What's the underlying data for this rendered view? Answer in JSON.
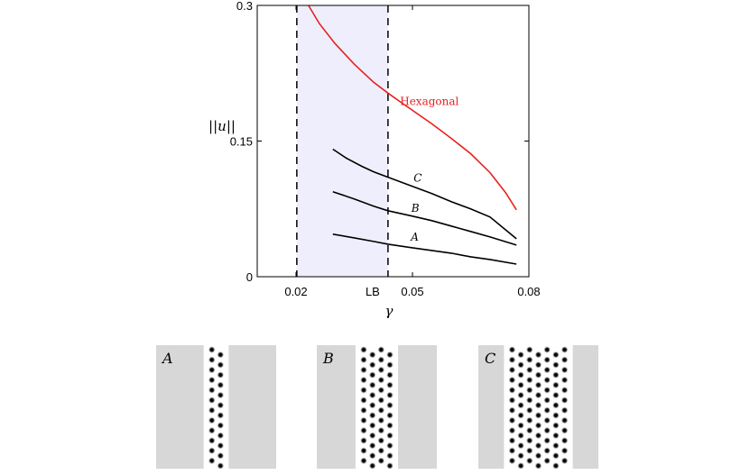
{
  "chart_data": {
    "type": "line",
    "xlabel": "γ",
    "ylabel": "||u||",
    "xlim": [
      0.01,
      0.08
    ],
    "ylim": [
      0,
      0.3
    ],
    "x_ticks": [
      {
        "value": 0.02,
        "label": "0.02"
      },
      {
        "value": 0.05,
        "label": "0.05"
      },
      {
        "value": 0.08,
        "label": "0.08"
      }
    ],
    "lb_tick": {
      "value": 0.0437,
      "label": "LB"
    },
    "y_ticks": [
      {
        "value": 0,
        "label": "0"
      },
      {
        "value": 0.15,
        "label": "0.15"
      },
      {
        "value": 0.3,
        "label": "0.3"
      }
    ],
    "shaded_region": {
      "from": 0.0202,
      "to": 0.0437,
      "color": "#eeeefc"
    },
    "vlines": [
      0.0202,
      0.0437
    ],
    "series": [
      {
        "name": "Hexagonal",
        "color": "#e8201e",
        "x": [
          0.0232,
          0.026,
          0.03,
          0.035,
          0.04,
          0.0437,
          0.047,
          0.05,
          0.055,
          0.06,
          0.065,
          0.07,
          0.074,
          0.0768
        ],
        "y": [
          0.3,
          0.28,
          0.258,
          0.235,
          0.215,
          0.203,
          0.193,
          0.184,
          0.169,
          0.153,
          0.136,
          0.115,
          0.093,
          0.074
        ]
      },
      {
        "name": "C",
        "color": "#000000",
        "x": [
          0.0295,
          0.033,
          0.037,
          0.04,
          0.0437,
          0.05,
          0.055,
          0.06,
          0.065,
          0.07,
          0.0768
        ],
        "y": [
          0.141,
          0.131,
          0.122,
          0.116,
          0.11,
          0.1,
          0.092,
          0.083,
          0.075,
          0.066,
          0.042
        ]
      },
      {
        "name": "B",
        "color": "#000000",
        "x": [
          0.0295,
          0.035,
          0.04,
          0.0437,
          0.05,
          0.055,
          0.06,
          0.065,
          0.07,
          0.0768
        ],
        "y": [
          0.094,
          0.086,
          0.078,
          0.073,
          0.067,
          0.062,
          0.056,
          0.05,
          0.044,
          0.035
        ]
      },
      {
        "name": "A",
        "color": "#000000",
        "x": [
          0.0295,
          0.035,
          0.04,
          0.0437,
          0.05,
          0.055,
          0.06,
          0.065,
          0.07,
          0.0768
        ],
        "y": [
          0.047,
          0.043,
          0.039,
          0.036,
          0.032,
          0.029,
          0.026,
          0.022,
          0.019,
          0.014
        ]
      }
    ],
    "curve_labels": [
      {
        "text": "Hexagonal",
        "x": 0.0468,
        "y": 0.19
      },
      {
        "text": "C",
        "x": 0.0503,
        "y": 0.105
      },
      {
        "text": "B",
        "x": 0.0497,
        "y": 0.072
      },
      {
        "text": "A",
        "x": 0.0496,
        "y": 0.04
      }
    ],
    "grid": false
  },
  "panels": [
    {
      "label": "A",
      "columns": 2
    },
    {
      "label": "B",
      "columns": 4
    },
    {
      "label": "C",
      "columns": 7
    }
  ]
}
